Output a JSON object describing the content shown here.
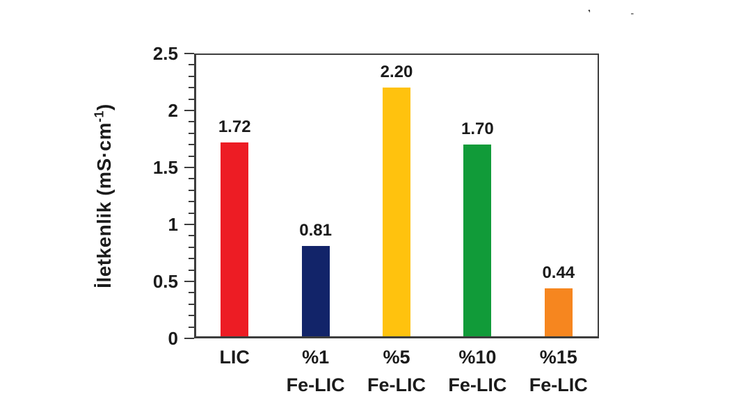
{
  "figure": {
    "background": "#ffffff",
    "axis_color": "#3d3d3d",
    "text_color": "#1b1b1b"
  },
  "chart_data": {
    "type": "bar",
    "title": "",
    "xlabel": "",
    "ylabel_main": "İletkenlik (mS·cm",
    "ylabel_sup": "-1",
    "ylabel_end": ")",
    "ylabel_full": "İletkenlik (mS·cm⁻¹)",
    "ylim": [
      0,
      2.5
    ],
    "ytick_major_values": [
      0,
      0.5,
      1,
      1.5,
      2,
      2.5
    ],
    "ytick_major_labels": [
      "0",
      "0.5",
      "1",
      "1.5",
      "2",
      "2.5"
    ],
    "ytick_minor_step": 0.1,
    "grid": false,
    "legend": false,
    "categories": [
      {
        "line1": "LIC",
        "line2": ""
      },
      {
        "line1": "%1",
        "line2": "Fe-LIC"
      },
      {
        "line1": "%5",
        "line2": "Fe-LIC"
      },
      {
        "line1": "%10",
        "line2": "Fe-LIC"
      },
      {
        "line1": "%15",
        "line2": "Fe-LIC"
      }
    ],
    "values": [
      1.72,
      0.81,
      2.2,
      1.7,
      0.44
    ],
    "value_labels": [
      "1.72",
      "0.81",
      "2.20",
      "1.70",
      "0.44"
    ],
    "bar_colors": [
      "#ED1C24",
      "#122469",
      "#FFC20E",
      "#119B39",
      "#F6861F"
    ]
  },
  "artifacts": {
    "mark1": "❜",
    "mark2": "˗"
  }
}
